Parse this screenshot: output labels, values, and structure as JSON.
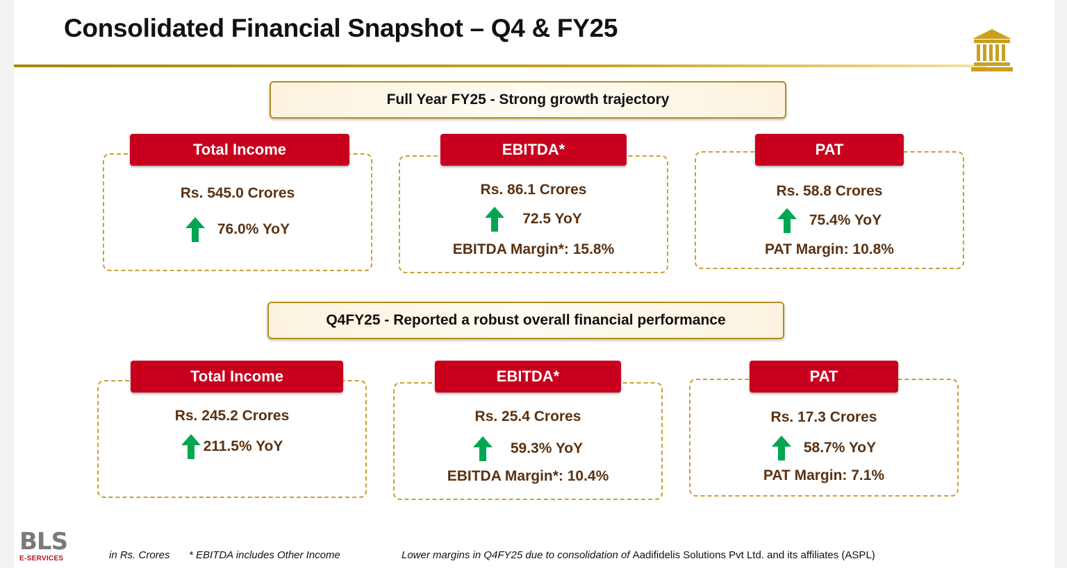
{
  "title": "Consolidated Financial Snapshot – Q4 & FY25",
  "colors": {
    "accent_red": "#c8001e",
    "gold": "#c9a030",
    "value_brown": "#5a3212",
    "arrow_green": "#00a651"
  },
  "icons": {
    "header": "bank-building-icon",
    "growth": "up-arrow-icon"
  },
  "fy25": {
    "banner": "Full Year FY25 - Strong growth trajectory",
    "cards": [
      {
        "label": "Total Income",
        "value": "Rs. 545.0 Crores",
        "yoy": "76.0% YoY",
        "margin": ""
      },
      {
        "label": "EBITDA*",
        "value": "Rs. 86.1 Crores",
        "yoy": "72.5 YoY",
        "margin": "EBITDA Margin*: 15.8%"
      },
      {
        "label": "PAT",
        "value": "Rs. 58.8 Crores",
        "yoy": "75.4% YoY",
        "margin": "PAT Margin: 10.8%"
      }
    ]
  },
  "q4": {
    "banner": "Q4FY25 - Reported a robust overall financial performance",
    "cards": [
      {
        "label": "Total Income",
        "value": "Rs. 245.2 Crores",
        "yoy": "211.5% YoY",
        "margin": ""
      },
      {
        "label": "EBITDA*",
        "value": "Rs. 25.4 Crores",
        "yoy": "59.3% YoY",
        "margin": "EBITDA Margin*: 10.4%"
      },
      {
        "label": "PAT",
        "value": "Rs. 17.3 Crores",
        "yoy": "58.7% YoY",
        "margin": "PAT Margin: 7.1%"
      }
    ]
  },
  "logo": {
    "main": "BLS",
    "sub": "E-SERVICES"
  },
  "footer": {
    "units": "in Rs. Crores",
    "ebitda_note": "* EBITDA includes Other Income",
    "margin_note_italic": "Lower margins in Q4FY25 due to consolidation of",
    "margin_note_normal": "Aadifidelis Solutions Pvt Ltd. and its affiliates (ASPL)"
  }
}
